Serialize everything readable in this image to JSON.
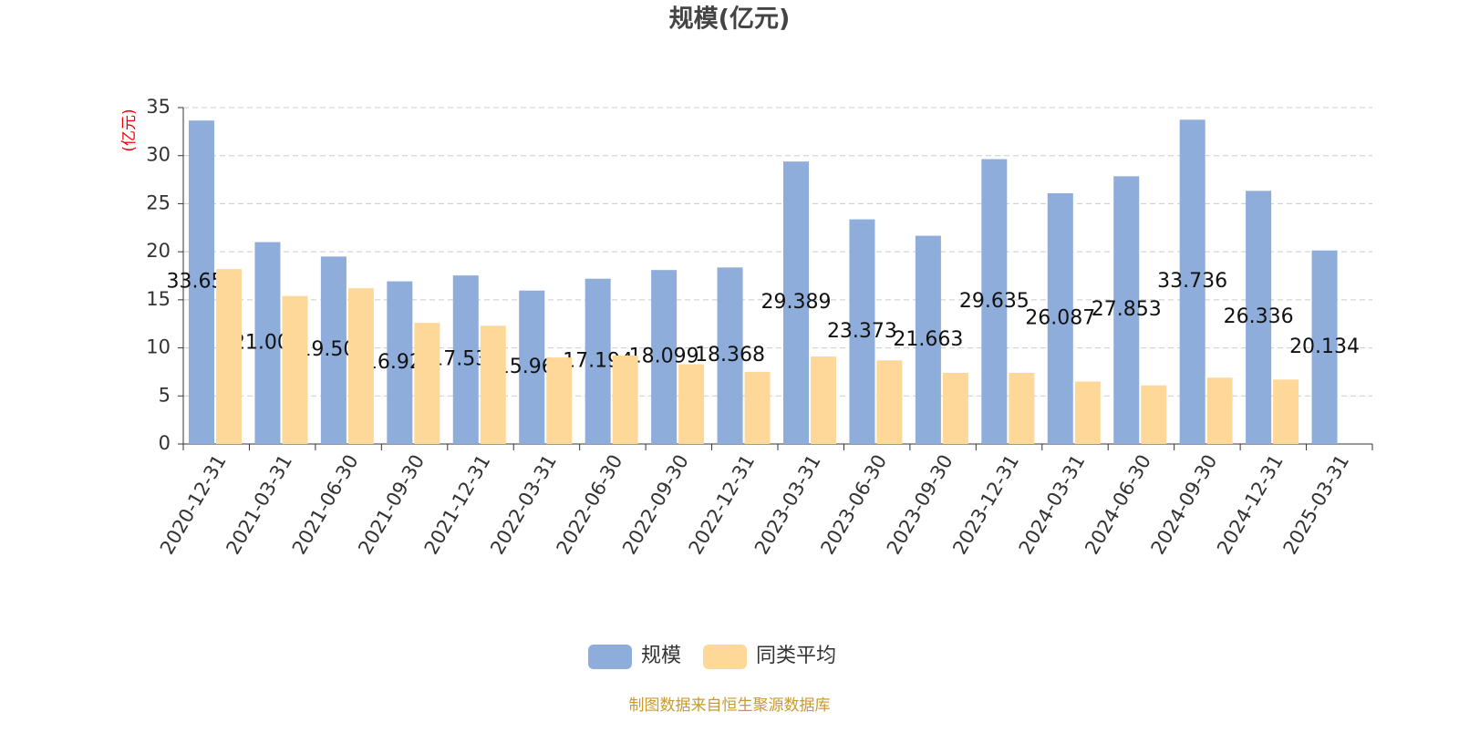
{
  "chart_data": {
    "type": "bar",
    "title": "规模(亿元)",
    "y_label": "(亿元)",
    "source": "制图数据来自恒生聚源数据库",
    "categories": [
      "2020-12-31",
      "2021-03-31",
      "2021-06-30",
      "2021-09-30",
      "2021-12-31",
      "2022-03-31",
      "2022-06-30",
      "2022-09-30",
      "2022-12-31",
      "2023-03-31",
      "2023-06-30",
      "2023-09-30",
      "2023-12-31",
      "2024-03-31",
      "2024-06-30",
      "2024-09-30",
      "2024-12-31",
      "2025-03-31"
    ],
    "series": [
      {
        "name": "规模",
        "color": "#8eadda",
        "values": [
          33.652,
          21.004,
          19.504,
          16.924,
          17.534,
          15.964,
          17.194,
          18.099,
          18.368,
          29.389,
          23.373,
          21.663,
          29.635,
          26.087,
          27.853,
          33.736,
          26.336,
          20.134
        ]
      },
      {
        "name": "同类平均",
        "color": "#fed898",
        "values": [
          18.2,
          15.4,
          16.2,
          12.6,
          12.3,
          9.0,
          9.2,
          8.3,
          7.5,
          9.1,
          8.7,
          7.4,
          7.4,
          6.5,
          6.1,
          6.9,
          6.7,
          null
        ]
      }
    ],
    "ylim": [
      0,
      35
    ],
    "yticks": [
      0,
      5,
      10,
      15,
      20,
      25,
      30,
      35
    ],
    "grid": true
  }
}
